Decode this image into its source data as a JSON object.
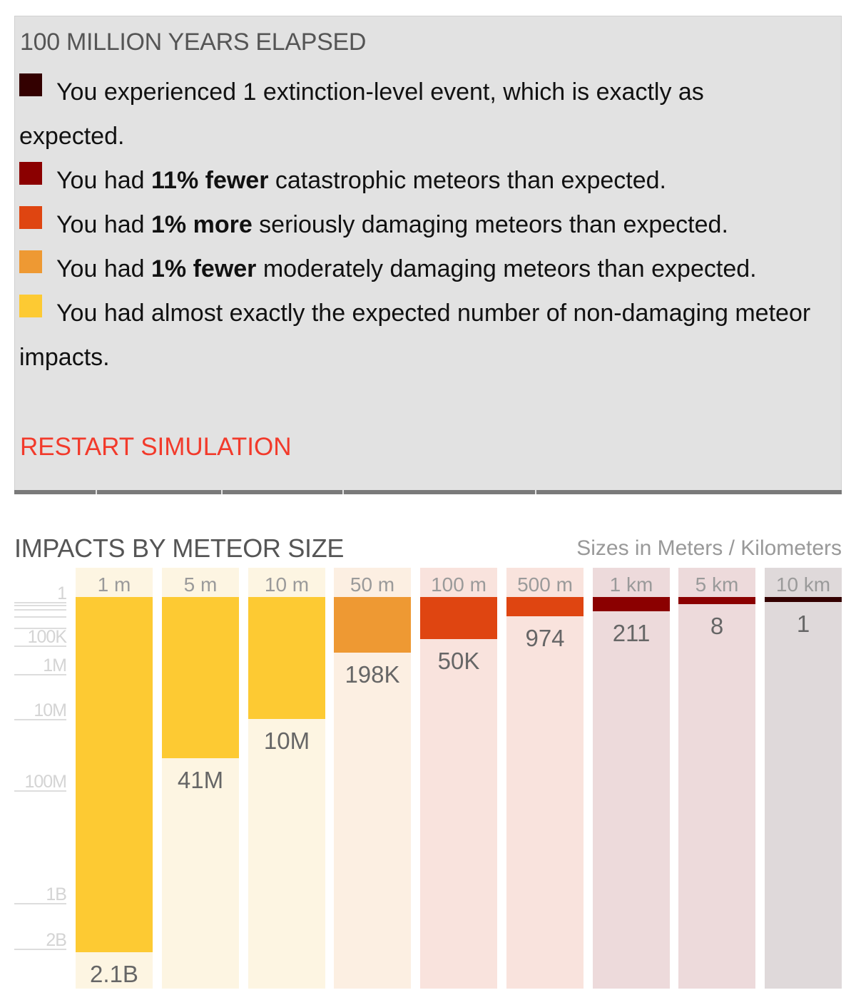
{
  "summary": {
    "title": "100 MILLION YEARS ELAPSED",
    "items": [
      {
        "color": "#330000",
        "pre": "You experienced 1 extinction-level event, which is exactly as expected.",
        "bold": "",
        "post": ""
      },
      {
        "color": "#8b0000",
        "pre": "You had ",
        "bold": "11% fewer",
        "post": " catastrophic meteors than expected."
      },
      {
        "color": "#df4511",
        "pre": "You had ",
        "bold": "1% more",
        "post": " seriously damaging meteors than expected."
      },
      {
        "color": "#ee9933",
        "pre": "You had ",
        "bold": "1% fewer",
        "post": " moderately damaging meteors than expected."
      },
      {
        "color": "#fdca33",
        "pre": "You had almost exactly the expected number of non-damaging meteor impacts.",
        "bold": "",
        "post": ""
      }
    ],
    "restart_label": "RESTART SIMULATION"
  },
  "chart_data": {
    "type": "bar",
    "title": "IMPACTS BY METEOR SIZE",
    "subtitle": "Sizes in Meters / Kilometers",
    "scale": "power (exponent ~0.2), growing downward",
    "ylim": [
      0,
      2100000000
    ],
    "yticks": [
      {
        "value": 1,
        "label": "1"
      },
      {
        "value": 10,
        "label": ""
      },
      {
        "value": 100,
        "label": ""
      },
      {
        "value": 1000,
        "label": ""
      },
      {
        "value": 10000,
        "label": ""
      },
      {
        "value": 100000,
        "label": "100K"
      },
      {
        "value": 1000000,
        "label": "1M"
      },
      {
        "value": 10000000,
        "label": "10M"
      },
      {
        "value": 100000000,
        "label": "100M"
      },
      {
        "value": 1000000000,
        "label": "1B"
      },
      {
        "value": 2000000000,
        "label": "2B"
      }
    ],
    "categories": [
      "1 m",
      "5 m",
      "10 m",
      "50 m",
      "100 m",
      "500 m",
      "1 km",
      "5 km",
      "10 km"
    ],
    "values": [
      2100000000,
      41000000,
      10000000,
      198000,
      50000,
      974,
      211,
      8,
      1
    ],
    "labels": [
      "2.1B",
      "41M",
      "10M",
      "198K",
      "50K",
      "974",
      "211",
      "8",
      "1"
    ],
    "bar_colors": [
      "#fdca33",
      "#fdca33",
      "#fdca33",
      "#ee9933",
      "#df4511",
      "#df4511",
      "#8b0000",
      "#8b0000",
      "#330000"
    ],
    "column_backgrounds": [
      "#fdf5e2",
      "#fdf5e2",
      "#fdf5e2",
      "#fcefe2",
      "#f9e3dd",
      "#f9e3dd",
      "#eddadb",
      "#eddadb",
      "#dfd9da"
    ],
    "grid": false
  }
}
